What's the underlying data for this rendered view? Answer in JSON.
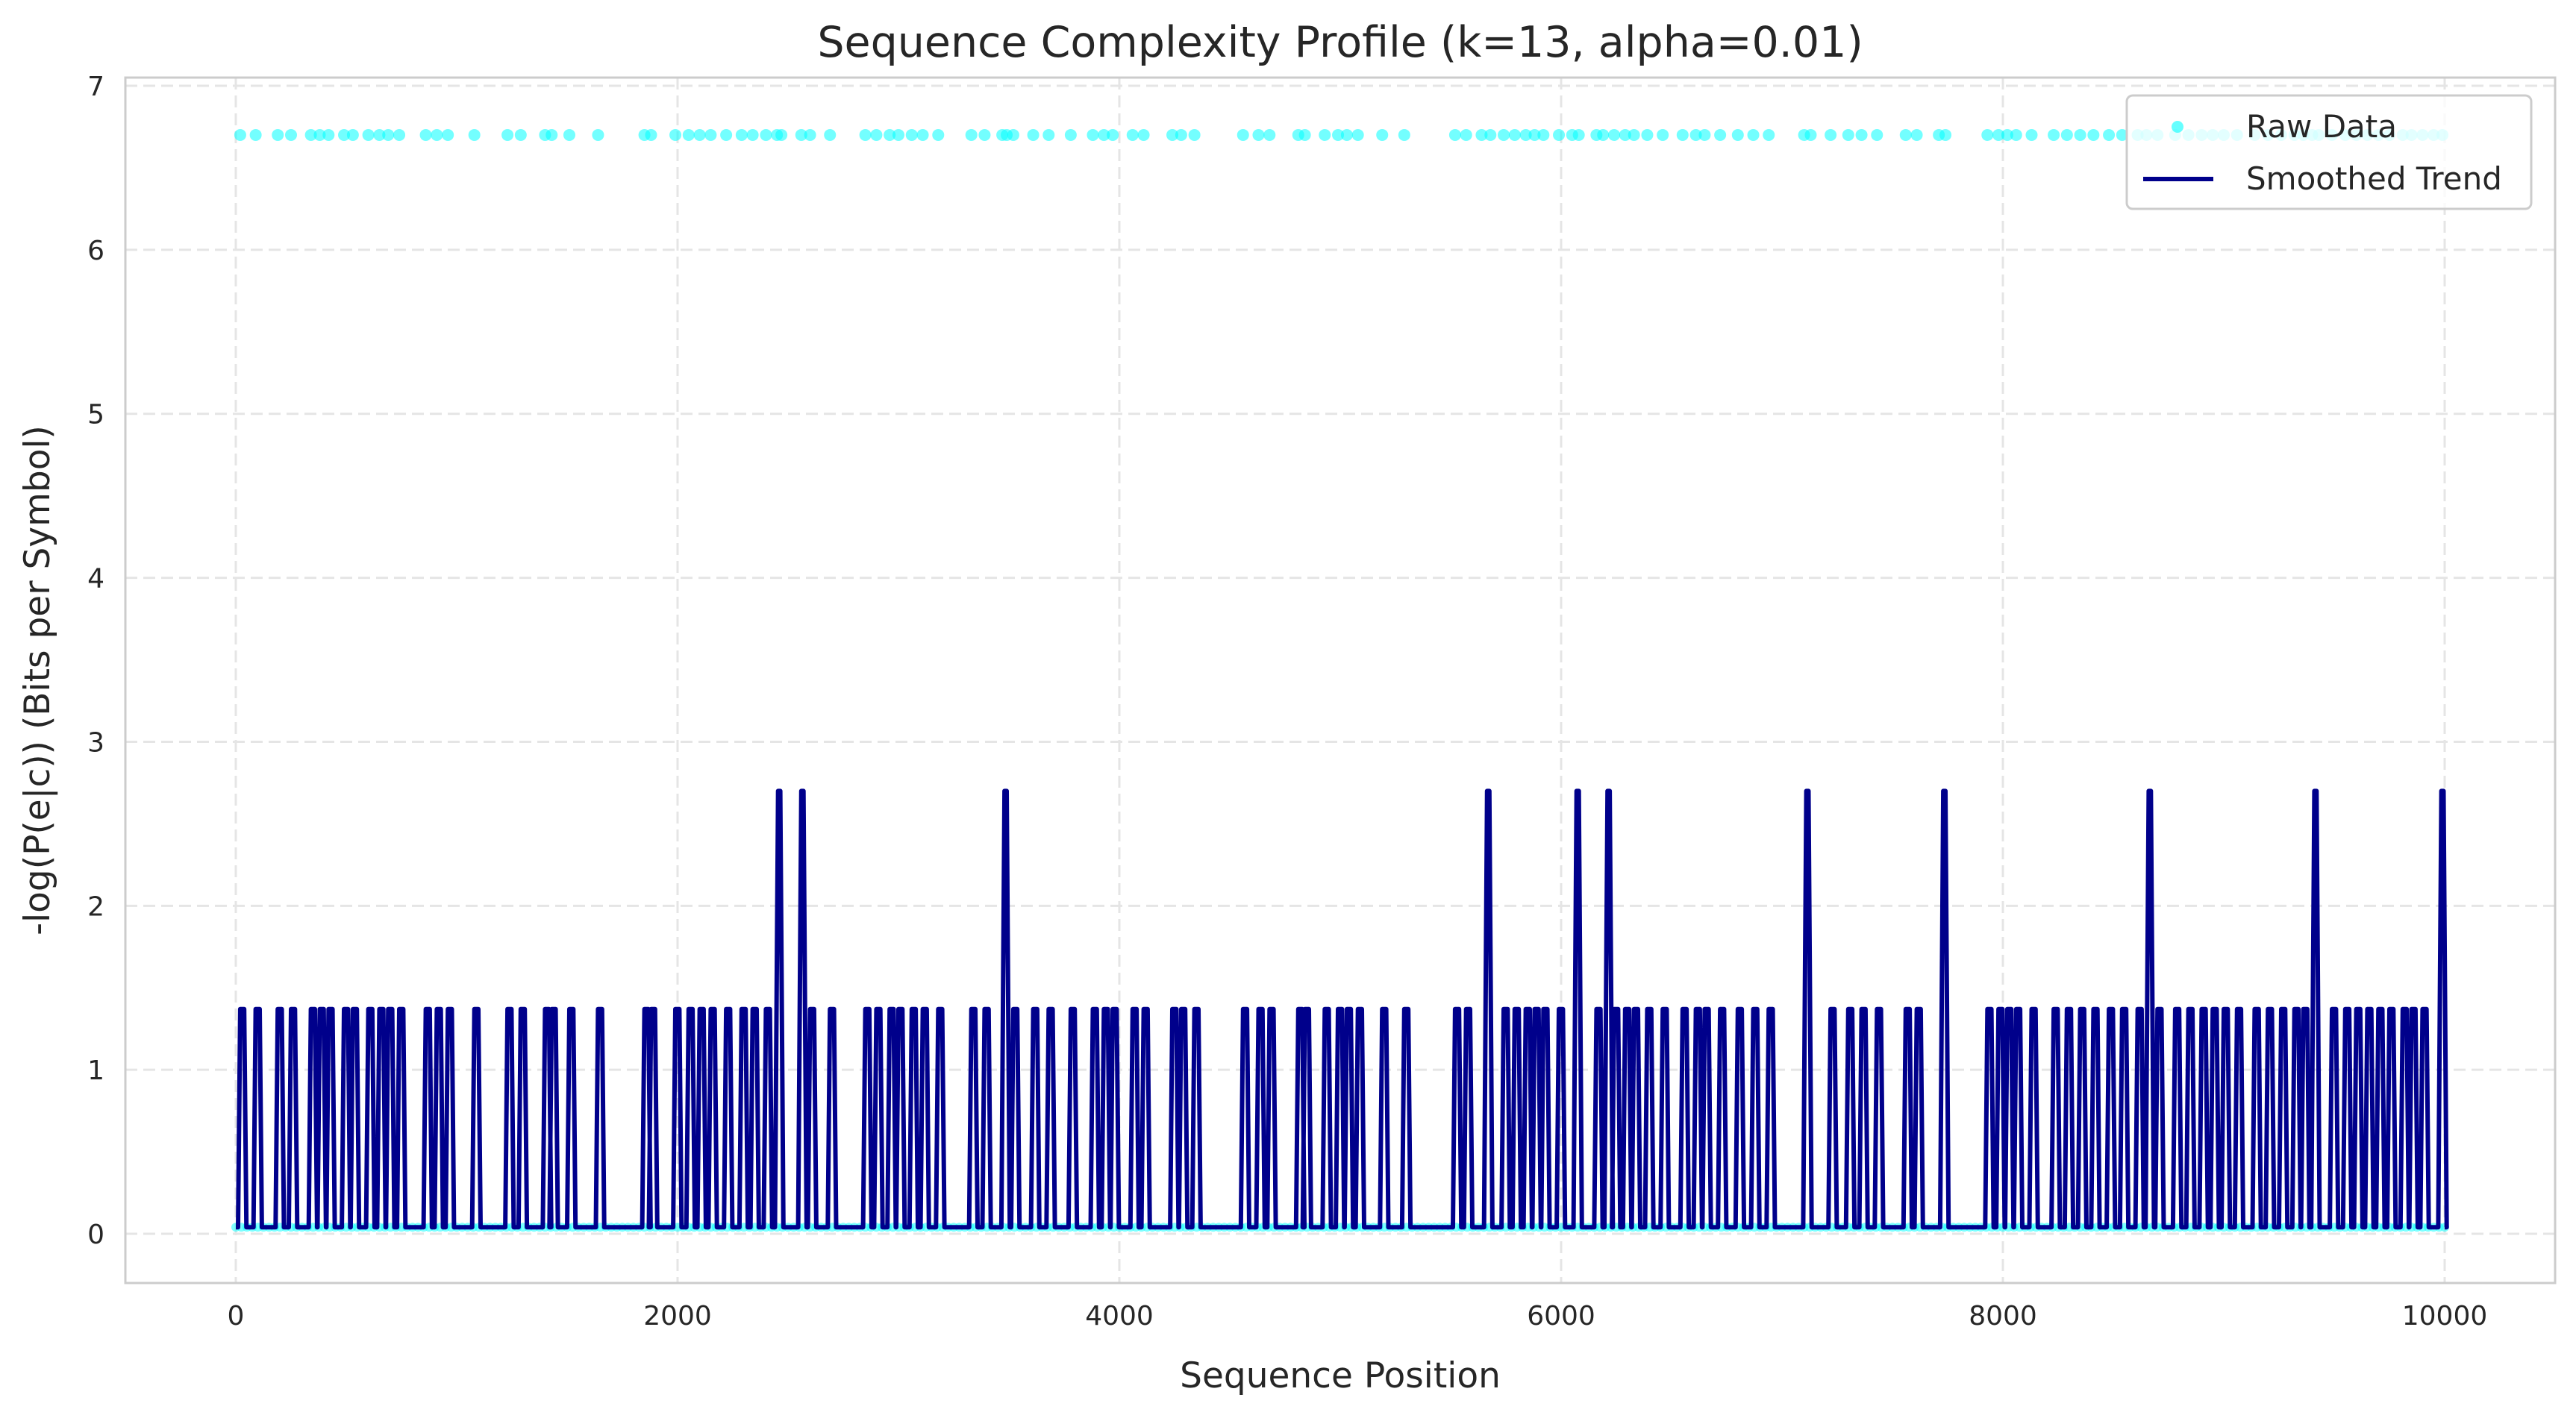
{
  "chart_data": {
    "type": "line",
    "title": "Sequence Complexity Profile (k=13, alpha=0.01)",
    "xlabel": "Sequence Position",
    "ylabel": "-log(P(e|c)) (Bits per Symbol)",
    "xlim": [
      -500,
      10500
    ],
    "ylim": [
      -0.3,
      7.05
    ],
    "xticks": [
      0,
      2000,
      4000,
      6000,
      8000,
      10000
    ],
    "yticks": [
      0,
      1,
      2,
      3,
      4,
      5,
      6,
      7
    ],
    "grid": true,
    "legend_position": "top-right",
    "levels": {
      "baseline": 0.04,
      "novel": 6.7,
      "smoothed_low": 0.04,
      "smoothed_mid": 1.37,
      "smoothed_high": 2.7
    },
    "series": [
      {
        "name": "Raw Data",
        "kind": "scatter",
        "color": "#00ffff",
        "x_range": [
          0,
          10000
        ],
        "high_value_x": [
          20,
          90,
          190,
          250,
          340,
          380,
          420,
          490,
          530,
          600,
          650,
          690,
          740,
          860,
          910,
          960,
          1080,
          1230,
          1290,
          1400,
          1430,
          1510,
          1640,
          1850,
          1880,
          1990,
          2050,
          2100,
          2150,
          2220,
          2290,
          2340,
          2400,
          2450,
          2470,
          2560,
          2600,
          2690,
          2850,
          2900,
          2960,
          3000,
          3060,
          3110,
          3180,
          3330,
          3390,
          3470,
          3490,
          3520,
          3610,
          3680,
          3780,
          3880,
          3930,
          3970,
          4060,
          4110,
          4240,
          4280,
          4340,
          4560,
          4630,
          4680,
          4810,
          4840,
          4930,
          4990,
          5030,
          5080,
          5190,
          5290,
          5520,
          5570,
          5640,
          5680,
          5740,
          5790,
          5840,
          5880,
          5920,
          5990,
          6050,
          6080,
          6160,
          6190,
          6240,
          6290,
          6330,
          6390,
          6460,
          6550,
          6610,
          6650,
          6720,
          6800,
          6870,
          6940,
          7100,
          7130,
          7220,
          7300,
          7360,
          7430,
          7560,
          7610,
          7710,
          7740,
          7930,
          7980,
          8020,
          8060,
          8130,
          8230,
          8290,
          8350,
          8410,
          8480,
          8540,
          8610,
          8650,
          8700,
          8780,
          8840,
          8900,
          8950,
          9000,
          9060,
          9140,
          9200,
          9260,
          9320,
          9360,
          9400,
          9430,
          9490,
          9550,
          9600,
          9650,
          9700,
          9750,
          9810,
          9850,
          9900,
          9950,
          9990
        ],
        "low_value": 0.04
      },
      {
        "name": "Smoothed Trend",
        "kind": "line",
        "color": "#00008b",
        "x_range": [
          0,
          10000
        ],
        "baseline": 0.04,
        "mid_level_x": [
          20,
          90,
          190,
          250,
          340,
          380,
          420,
          490,
          530,
          600,
          650,
          690,
          740,
          860,
          910,
          960,
          1080,
          1230,
          1290,
          1400,
          1430,
          1510,
          1640,
          1850,
          1880,
          1990,
          2050,
          2100,
          2150,
          2220,
          2290,
          2340,
          2400,
          2600,
          2690,
          2850,
          2900,
          2960,
          3000,
          3060,
          3110,
          3180,
          3330,
          3390,
          3520,
          3610,
          3680,
          3780,
          3880,
          3930,
          3970,
          4060,
          4110,
          4240,
          4280,
          4340,
          4560,
          4630,
          4680,
          4810,
          4840,
          4930,
          4990,
          5030,
          5080,
          5190,
          5290,
          5520,
          5570,
          5740,
          5790,
          5840,
          5880,
          5920,
          5990,
          6160,
          6240,
          6290,
          6330,
          6390,
          6460,
          6550,
          6610,
          6650,
          6720,
          6800,
          6870,
          6940,
          7220,
          7300,
          7360,
          7430,
          7560,
          7610,
          7930,
          7980,
          8020,
          8060,
          8130,
          8230,
          8290,
          8350,
          8410,
          8480,
          8540,
          8610,
          8700,
          8780,
          8840,
          8900,
          8950,
          9000,
          9060,
          9140,
          9200,
          9260,
          9320,
          9360,
          9490,
          9550,
          9600,
          9650,
          9700,
          9750,
          9810,
          9850,
          9900
        ],
        "high_level_x": [
          2455,
          2560,
          3480,
          5665,
          6070,
          6210,
          7110,
          7730,
          8660,
          9410,
          9985
        ]
      }
    ]
  }
}
